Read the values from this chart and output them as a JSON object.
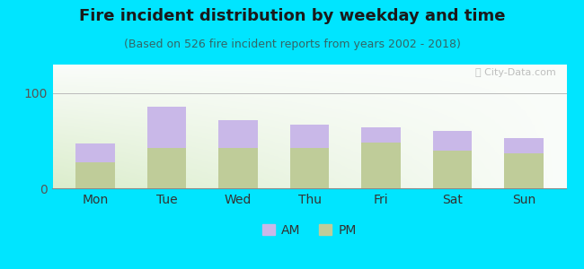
{
  "title": "Fire incident distribution by weekday and time",
  "subtitle": "(Based on 526 fire incident reports from years 2002 - 2018)",
  "categories": [
    "Mon",
    "Tue",
    "Wed",
    "Thu",
    "Fri",
    "Sat",
    "Sun"
  ],
  "pm_values": [
    27,
    42,
    42,
    42,
    48,
    40,
    37
  ],
  "am_values": [
    20,
    44,
    30,
    25,
    16,
    20,
    16
  ],
  "am_color": "#c9b8e8",
  "pm_color": "#bfcc99",
  "background_outer": "#00e5ff",
  "ylim": [
    0,
    130
  ],
  "yticks": [
    0,
    100
  ],
  "title_fontsize": 13,
  "subtitle_fontsize": 9,
  "tick_fontsize": 10,
  "legend_fontsize": 10,
  "watermark_text": "Ⓢ City-Data.com",
  "bar_width": 0.55
}
